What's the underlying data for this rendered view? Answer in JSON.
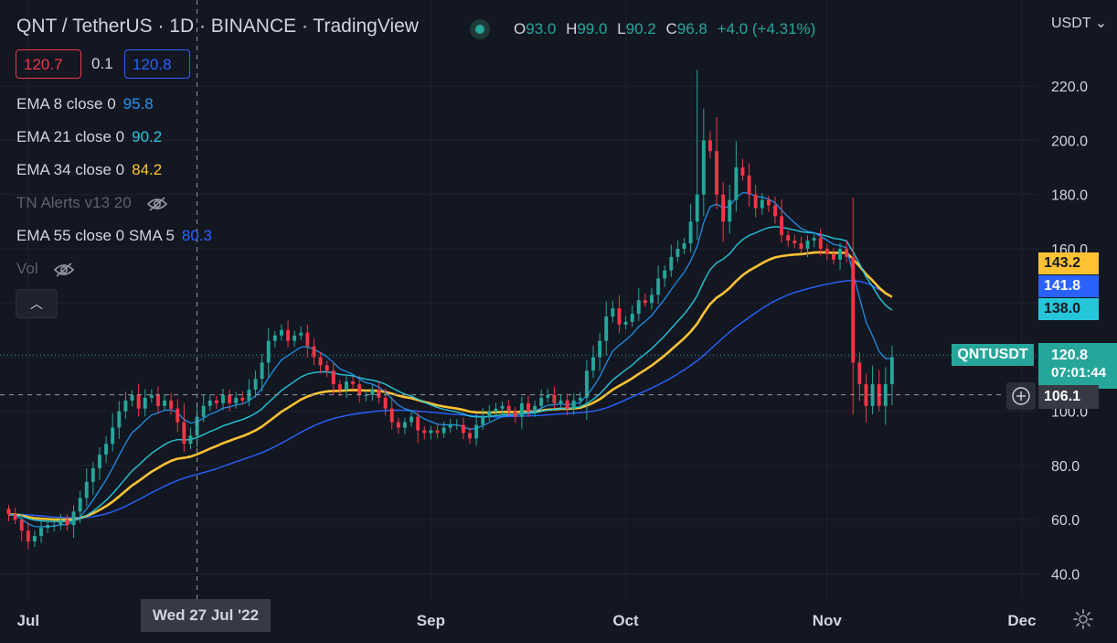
{
  "header": {
    "title": "QNT / TetherUS · 1D · BINANCE · TradingView",
    "ohlc": [
      {
        "k": "O",
        "v": "93.0"
      },
      {
        "k": "H",
        "v": "99.0"
      },
      {
        "k": "L",
        "v": "90.2"
      },
      {
        "k": "C",
        "v": "96.8"
      }
    ],
    "change": "+4.0 (+4.31%)",
    "bid": "120.7",
    "spread": "0.1",
    "ask": "120.8",
    "currency": "USDT"
  },
  "legend": [
    {
      "name": "EMA 8 close 0",
      "value": "95.8",
      "color": "#2196f3"
    },
    {
      "name": "EMA 21 close 0",
      "value": "90.2",
      "color": "#26c6da"
    },
    {
      "name": "EMA 34 close 0",
      "value": "84.2",
      "color": "#ffc233"
    },
    {
      "name": "TN Alerts v13 20",
      "value": "",
      "color": "#5d606b"
    },
    {
      "name": "EMA 55 close 0 SMA 5",
      "value": "80.3",
      "color": "#2962ff"
    },
    {
      "name": "Vol",
      "value": "",
      "color": "#5d606b"
    }
  ],
  "price_tags": {
    "ema34": "143.2",
    "ema55": "141.8",
    "ema21": "138.0",
    "symbol": "QNTUSDT",
    "last": "120.8",
    "countdown": "07:01:44",
    "crosshair": "106.1"
  },
  "crosshair_date": "Wed 27 Jul '22",
  "colors": {
    "up": "#26a69a",
    "down": "#f23645",
    "bg": "#131722",
    "grid": "#1e222d"
  },
  "chart_data": {
    "type": "candlestick",
    "title": "QNT / TetherUS · 1D · BINANCE",
    "ylim": [
      30,
      230
    ],
    "yticks": [
      40,
      60,
      80,
      100,
      120,
      140,
      160,
      180,
      200,
      220
    ],
    "ytick_labels": [
      "40.0",
      "60.0",
      "80.0",
      "100.0",
      "120.0",
      "140.0",
      "160.0",
      "180.0",
      "200.0",
      "220.0"
    ],
    "xticks": [
      {
        "label": "Jul",
        "date": "2022-07-01"
      },
      {
        "label": "Sep",
        "date": "2022-09-01"
      },
      {
        "label": "Oct",
        "date": "2022-10-01"
      },
      {
        "label": "Nov",
        "date": "2022-11-01"
      },
      {
        "label": "Dec",
        "date": "2022-12-01"
      }
    ],
    "first_date": "2022-06-28",
    "closes": [
      62,
      60,
      56,
      52,
      54,
      57,
      58,
      58,
      60,
      58,
      63,
      68,
      74,
      79,
      84,
      88,
      94,
      100,
      104,
      106,
      101,
      105,
      106,
      102,
      104,
      101,
      96,
      88,
      91,
      98,
      102,
      104,
      103,
      106,
      103,
      105,
      104,
      108,
      112,
      118,
      126,
      128,
      130,
      126,
      128,
      129,
      124,
      120,
      117,
      115,
      110,
      108,
      111,
      110,
      106,
      106,
      108,
      105,
      101,
      96,
      94,
      96,
      98,
      93,
      92,
      93,
      92,
      94,
      95,
      95,
      92,
      90,
      95,
      98,
      100,
      101,
      102,
      100,
      98,
      103,
      100,
      102,
      105,
      106,
      103,
      104,
      101,
      104,
      105,
      115,
      120,
      126,
      135,
      138,
      132,
      133,
      136,
      141,
      140,
      143,
      149,
      152,
      157,
      160,
      162,
      170,
      180,
      200,
      196,
      180,
      170,
      178,
      190,
      187,
      180,
      175,
      178,
      176,
      172,
      165,
      163,
      162,
      160,
      163,
      164,
      160,
      158,
      156,
      160,
      157,
      118,
      110,
      102,
      110,
      102,
      110,
      120
    ],
    "ema8_last": 95.8,
    "ema21_last": 90.2,
    "ema34_last": 84.2,
    "ema55_sma5_last": 80.3
  }
}
